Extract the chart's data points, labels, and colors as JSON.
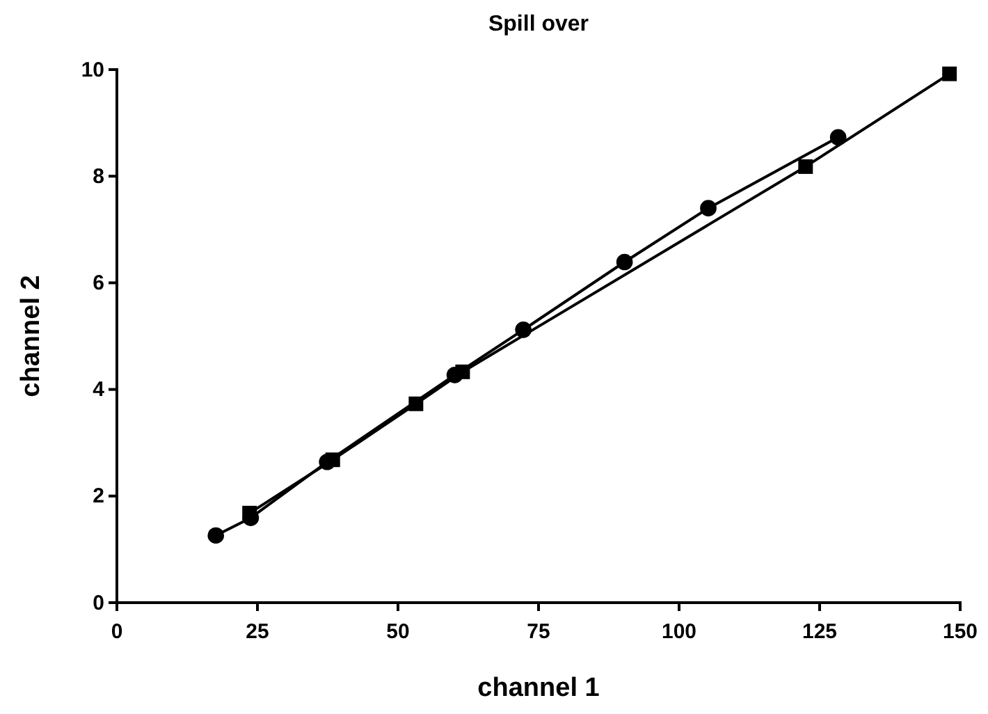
{
  "chart_data": {
    "type": "line",
    "title": "Spill over",
    "xlabel": "channel 1",
    "ylabel": "channel 2",
    "xlim": [
      0,
      150
    ],
    "xticks": [
      0,
      25,
      50,
      75,
      100,
      125,
      150
    ],
    "ylim": [
      0,
      10
    ],
    "yticks": [
      0,
      2,
      4,
      6,
      8,
      10
    ],
    "series": [
      {
        "color": "#000000",
        "marker": "circle",
        "x": [
          17.6,
          23.8,
          37.4,
          60.1,
          72.3,
          90.3,
          105.2,
          128.3
        ],
        "values": [
          1.26,
          1.59,
          2.64,
          4.27,
          5.12,
          6.39,
          7.4,
          8.73
        ]
      },
      {
        "color": "#000000",
        "marker": "square",
        "x": [
          23.6,
          38.4,
          53.2,
          61.5,
          122.5,
          148.1
        ],
        "values": [
          1.68,
          2.68,
          3.73,
          4.33,
          8.18,
          9.92
        ]
      }
    ]
  }
}
